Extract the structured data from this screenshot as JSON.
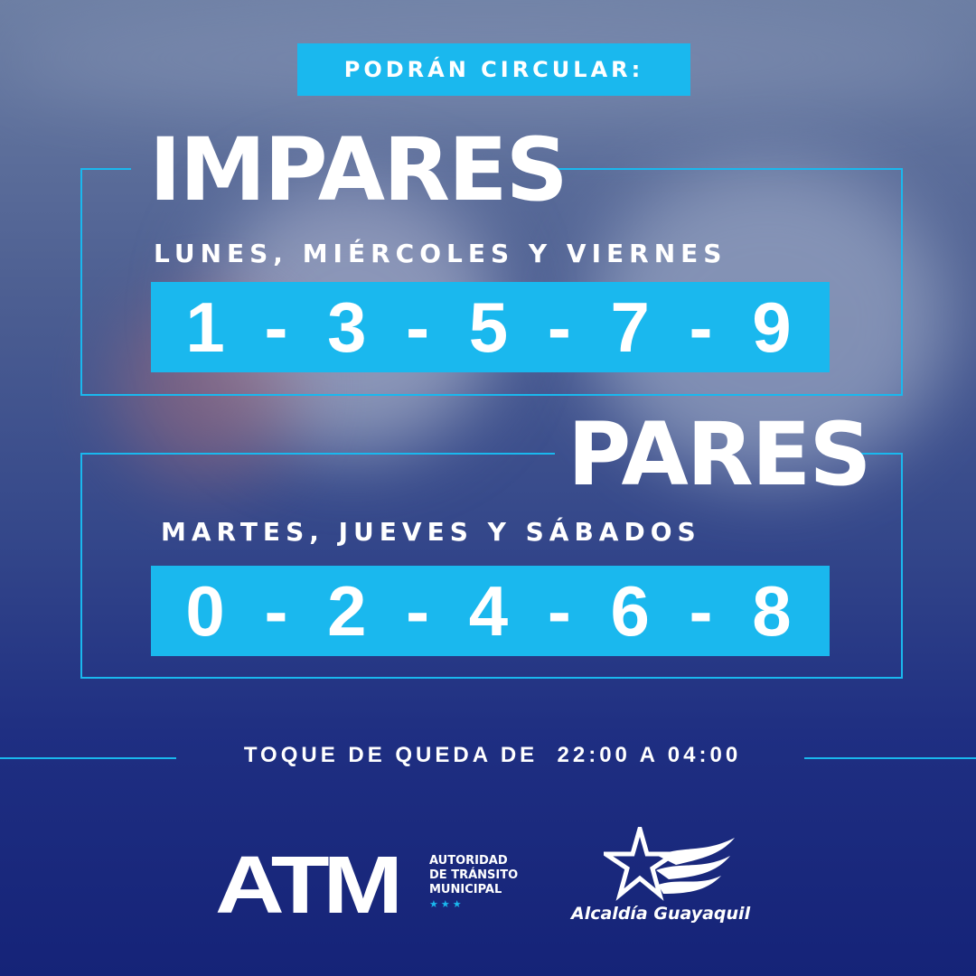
{
  "header": {
    "badge": "PODRÁN CIRCULAR:"
  },
  "impares": {
    "title": "IMPARES",
    "days": "LUNES, MIÉRCOLES Y VIERNES",
    "digits": "1 - 3 - 5 - 7 - 9"
  },
  "pares": {
    "title": "PARES",
    "days": "MARTES, JUEVES Y SÁBADOS",
    "digits": "0 - 2 - 4 - 6 - 8"
  },
  "curfew": "TOQUE DE QUEDA DE  22:00 A 04:00",
  "logos": {
    "atm": "ATM",
    "atm_sub": [
      "AUTORIDAD",
      "DE TRÁNSITO",
      "MUNICIPAL"
    ],
    "atm_stars": "★★★",
    "alcaldia": "Alcaldía Guayaquil"
  },
  "colors": {
    "accent": "#1ab8ee",
    "bg_top": "#6c7ea3",
    "bg_bottom": "#152378"
  }
}
